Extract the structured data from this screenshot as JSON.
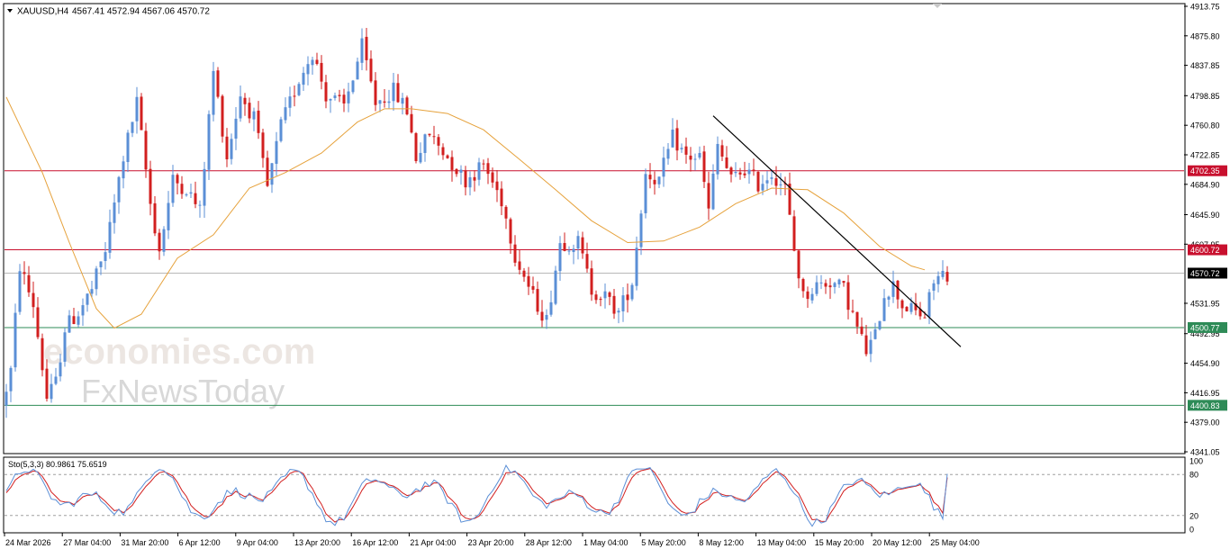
{
  "header": {
    "menu_icon": "triangle-down-icon",
    "symbol": "XAUUSD,H4",
    "ohlc": "4567.41 4572.94 4567.06 4570.72"
  },
  "watermark": {
    "line1": "economies.com",
    "line2": "FxNewsToday"
  },
  "colors": {
    "bull": "#5b8fd6",
    "bear": "#d21f1f",
    "ma": "#e6a23c",
    "resistance": "#c8102e",
    "support": "#2e8b57",
    "current": "#000000",
    "trend": "#000000",
    "stoch_main": "#5b8fd6",
    "stoch_signal": "#d21f1f"
  },
  "chart_data": [
    {
      "type": "candlestick",
      "symbol": "XAUUSD",
      "timeframe": "H4",
      "y_range": [
        4341.05,
        4913.75
      ],
      "y_ticks": [
        "4913.75",
        "4875.80",
        "4837.85",
        "4798.85",
        "4760.80",
        "4722.85",
        "4684.90",
        "4645.90",
        "4607.95",
        "4531.95",
        "4492.95",
        "4454.90",
        "4416.95",
        "4379.00",
        "4341.05"
      ],
      "x_ticks": [
        "24 Mar 2026",
        "27 Mar 04:00",
        "31 Mar 20:00",
        "6 Apr 12:00",
        "9 Apr 04:00",
        "13 Apr 20:00",
        "16 Apr 12:00",
        "21 Apr 04:00",
        "23 Apr 20:00",
        "28 Apr 12:00",
        "1 May 04:00",
        "5 May 20:00",
        "8 May 12:00",
        "13 May 04:00",
        "15 May 20:00",
        "20 May 12:00",
        "25 May 04:00"
      ],
      "price_lines": [
        {
          "label": "4702.35",
          "value": 4702.35,
          "kind": "resistance"
        },
        {
          "label": "4600.72",
          "value": 4600.72,
          "kind": "resistance"
        },
        {
          "label": "4570.72",
          "value": 4570.72,
          "kind": "current"
        },
        {
          "label": "4500.77",
          "value": 4500.77,
          "kind": "support"
        },
        {
          "label": "4400.83",
          "value": 4400.83,
          "kind": "support"
        }
      ],
      "trendline": {
        "from": {
          "bar": 157,
          "price": 4773
        },
        "to": {
          "bar": 212,
          "price": 4476
        }
      },
      "moving_average": [
        {
          "bar": 0,
          "price": 4797
        },
        {
          "bar": 8,
          "price": 4700
        },
        {
          "bar": 14,
          "price": 4610
        },
        {
          "bar": 20,
          "price": 4525
        },
        {
          "bar": 24,
          "price": 4500
        },
        {
          "bar": 30,
          "price": 4518
        },
        {
          "bar": 38,
          "price": 4590
        },
        {
          "bar": 46,
          "price": 4620
        },
        {
          "bar": 54,
          "price": 4680
        },
        {
          "bar": 62,
          "price": 4700
        },
        {
          "bar": 70,
          "price": 4725
        },
        {
          "bar": 78,
          "price": 4765
        },
        {
          "bar": 84,
          "price": 4782
        },
        {
          "bar": 90,
          "price": 4782
        },
        {
          "bar": 98,
          "price": 4776
        },
        {
          "bar": 106,
          "price": 4755
        },
        {
          "bar": 114,
          "price": 4717
        },
        {
          "bar": 122,
          "price": 4678
        },
        {
          "bar": 130,
          "price": 4638
        },
        {
          "bar": 138,
          "price": 4610
        },
        {
          "bar": 146,
          "price": 4612
        },
        {
          "bar": 154,
          "price": 4630
        },
        {
          "bar": 162,
          "price": 4660
        },
        {
          "bar": 170,
          "price": 4680
        },
        {
          "bar": 178,
          "price": 4678
        },
        {
          "bar": 186,
          "price": 4648
        },
        {
          "bar": 194,
          "price": 4605
        },
        {
          "bar": 201,
          "price": 4580
        },
        {
          "bar": 204,
          "price": 4575
        }
      ],
      "close_path": [
        {
          "bar": 0,
          "price": 4400
        },
        {
          "bar": 2,
          "price": 4445
        },
        {
          "bar": 4,
          "price": 4580
        },
        {
          "bar": 7,
          "price": 4530
        },
        {
          "bar": 10,
          "price": 4410
        },
        {
          "bar": 12,
          "price": 4430
        },
        {
          "bar": 14,
          "price": 4500
        },
        {
          "bar": 17,
          "price": 4520
        },
        {
          "bar": 20,
          "price": 4550
        },
        {
          "bar": 23,
          "price": 4600
        },
        {
          "bar": 27,
          "price": 4720
        },
        {
          "bar": 30,
          "price": 4790
        },
        {
          "bar": 33,
          "price": 4660
        },
        {
          "bar": 35,
          "price": 4600
        },
        {
          "bar": 38,
          "price": 4690
        },
        {
          "bar": 41,
          "price": 4680
        },
        {
          "bar": 44,
          "price": 4650
        },
        {
          "bar": 47,
          "price": 4830
        },
        {
          "bar": 50,
          "price": 4720
        },
        {
          "bar": 53,
          "price": 4800
        },
        {
          "bar": 56,
          "price": 4770
        },
        {
          "bar": 59,
          "price": 4680
        },
        {
          "bar": 62,
          "price": 4760
        },
        {
          "bar": 66,
          "price": 4820
        },
        {
          "bar": 69,
          "price": 4855
        },
        {
          "bar": 72,
          "price": 4800
        },
        {
          "bar": 76,
          "price": 4785
        },
        {
          "bar": 80,
          "price": 4862
        },
        {
          "bar": 83,
          "price": 4790
        },
        {
          "bar": 87,
          "price": 4805
        },
        {
          "bar": 90,
          "price": 4780
        },
        {
          "bar": 92,
          "price": 4720
        },
        {
          "bar": 95,
          "price": 4750
        },
        {
          "bar": 99,
          "price": 4720
        },
        {
          "bar": 103,
          "price": 4690
        },
        {
          "bar": 107,
          "price": 4710
        },
        {
          "bar": 111,
          "price": 4665
        },
        {
          "bar": 114,
          "price": 4595
        },
        {
          "bar": 118,
          "price": 4540
        },
        {
          "bar": 121,
          "price": 4510
        },
        {
          "bar": 124,
          "price": 4610
        },
        {
          "bar": 128,
          "price": 4610
        },
        {
          "bar": 131,
          "price": 4550
        },
        {
          "bar": 134,
          "price": 4540
        },
        {
          "bar": 137,
          "price": 4520
        },
        {
          "bar": 140,
          "price": 4560
        },
        {
          "bar": 143,
          "price": 4700
        },
        {
          "bar": 146,
          "price": 4690
        },
        {
          "bar": 149,
          "price": 4745
        },
        {
          "bar": 152,
          "price": 4720
        },
        {
          "bar": 155,
          "price": 4720
        },
        {
          "bar": 157,
          "price": 4650
        },
        {
          "bar": 159,
          "price": 4735
        },
        {
          "bar": 162,
          "price": 4690
        },
        {
          "bar": 165,
          "price": 4705
        },
        {
          "bar": 168,
          "price": 4685
        },
        {
          "bar": 171,
          "price": 4700
        },
        {
          "bar": 174,
          "price": 4680
        },
        {
          "bar": 176,
          "price": 4600
        },
        {
          "bar": 178,
          "price": 4540
        },
        {
          "bar": 181,
          "price": 4555
        },
        {
          "bar": 184,
          "price": 4560
        },
        {
          "bar": 187,
          "price": 4550
        },
        {
          "bar": 190,
          "price": 4500
        },
        {
          "bar": 192,
          "price": 4470
        },
        {
          "bar": 194,
          "price": 4490
        },
        {
          "bar": 196,
          "price": 4545
        },
        {
          "bar": 198,
          "price": 4555
        },
        {
          "bar": 200,
          "price": 4530
        },
        {
          "bar": 203,
          "price": 4520
        },
        {
          "bar": 205,
          "price": 4515
        },
        {
          "bar": 207,
          "price": 4560
        },
        {
          "bar": 209,
          "price": 4570
        }
      ]
    },
    {
      "type": "line",
      "name": "Sto(5,3,3)",
      "label": "Sto(5,3,3) 80.9861 75.6519",
      "main": 80.9861,
      "signal": 75.6519,
      "y_range": [
        0,
        100
      ],
      "y_ticks": [
        "100",
        "80",
        "20",
        "0"
      ],
      "levels": [
        80,
        20
      ]
    }
  ]
}
